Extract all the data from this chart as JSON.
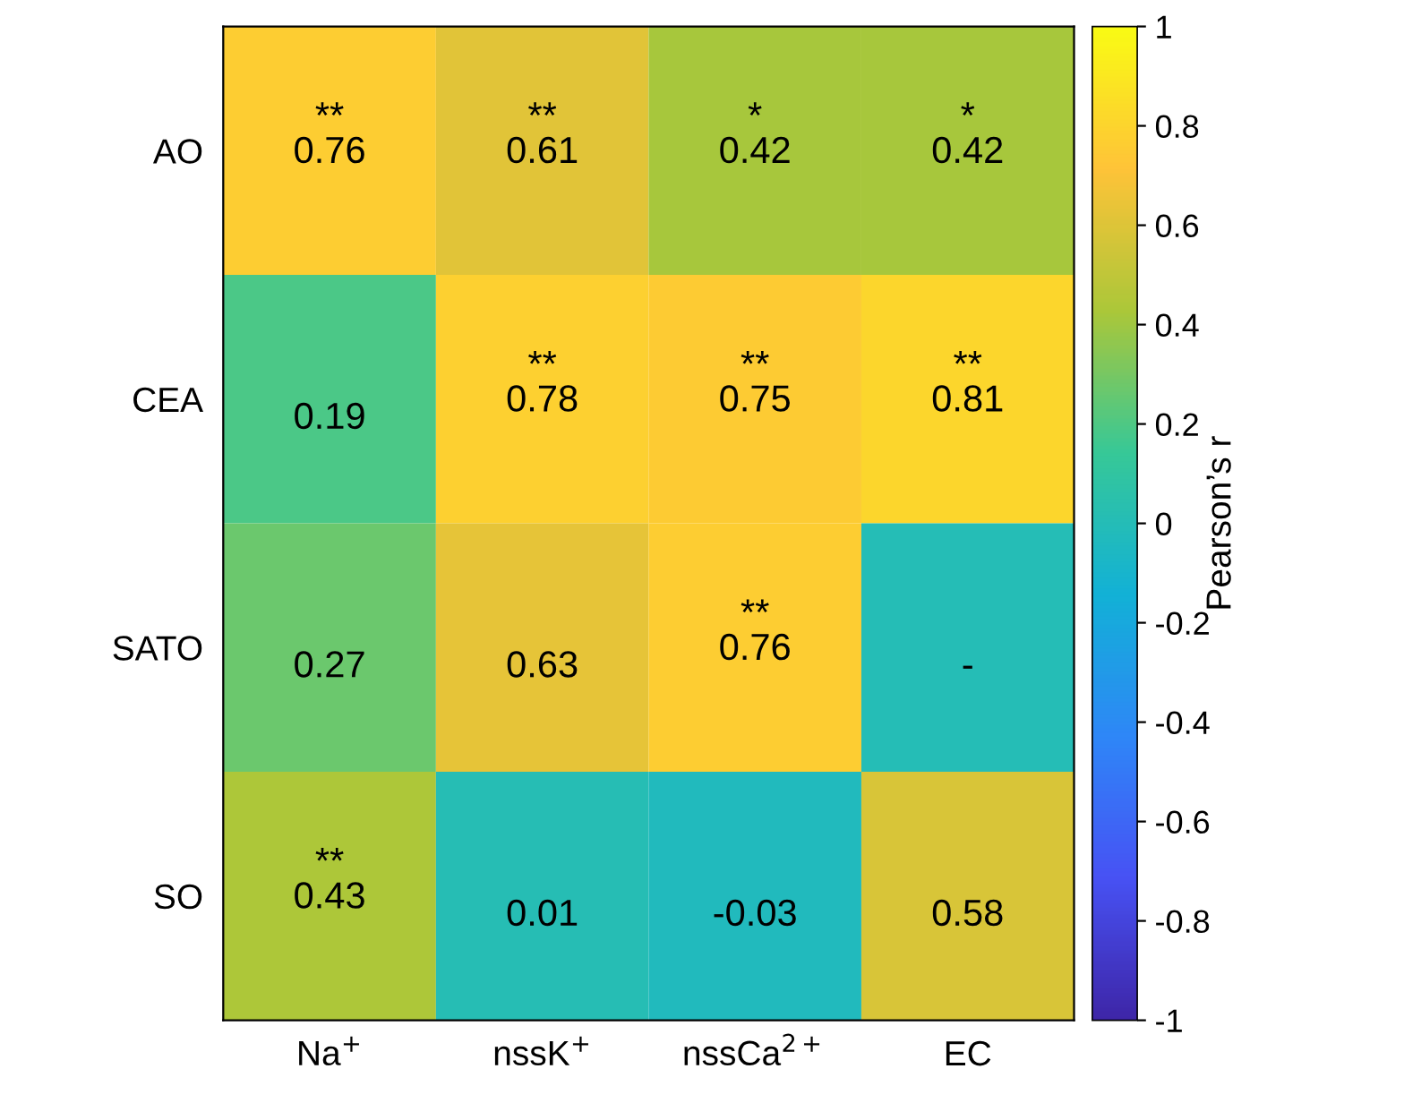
{
  "chart_data": {
    "type": "heatmap",
    "categories": [
      "Na$^{+}$",
      "nssK$^{+}$",
      "nssCa$^{2+}$",
      "EC"
    ],
    "y_categories": [
      "AO",
      "CEA",
      "SATO",
      "SO"
    ],
    "cells": [
      [
        0.76,
        0.61,
        0.42,
        0.42
      ],
      [
        0.19,
        0.78,
        0.75,
        0.81
      ],
      [
        0.27,
        0.63,
        0.76,
        0.0
      ],
      [
        0.43,
        0.01,
        -0.03,
        0.58
      ]
    ],
    "cell_labels": [
      [
        "**\n0.76",
        "**\n0.61",
        "*\n0.42",
        "*\n0.42"
      ],
      [
        "0.19",
        "**\n0.78",
        "**\n0.75",
        "**\n0.81"
      ],
      [
        "0.27",
        "0.63",
        "**\n0.76",
        "-"
      ],
      [
        "**\n0.43",
        "0.01",
        "-0.03",
        "0.58"
      ]
    ],
    "clabel": "Pearson’s r",
    "clim": [
      -1,
      1
    ],
    "cticks": [
      -1,
      -0.8,
      -0.6,
      -0.4,
      -0.2,
      0,
      0.2,
      0.4,
      0.6,
      0.8,
      1
    ]
  }
}
